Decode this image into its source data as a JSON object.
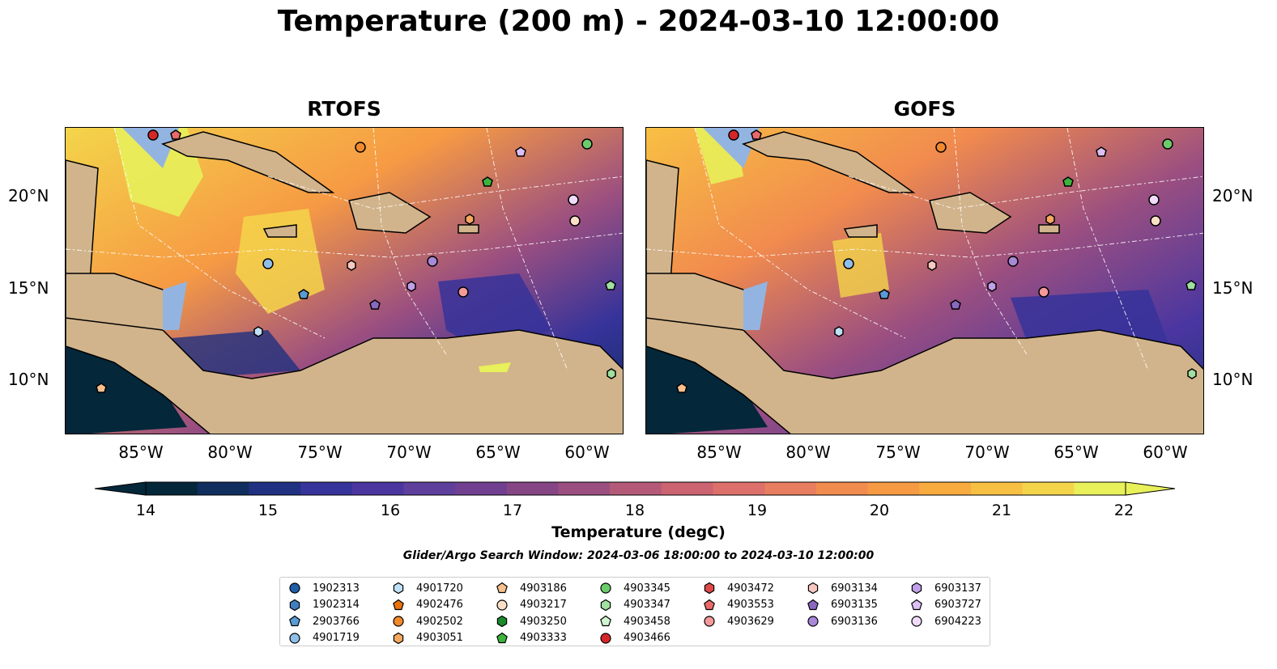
{
  "title": "Temperature (200 m) - 2024-03-10 12:00:00",
  "panels": [
    {
      "title": "RTOFS"
    },
    {
      "title": "GOFS"
    }
  ],
  "x_ticks": [
    "85°W",
    "80°W",
    "75°W",
    "70°W",
    "65°W",
    "60°W"
  ],
  "y_ticks": [
    "20°N",
    "15°N",
    "10°N"
  ],
  "colorbar": {
    "label": "Temperature (degC)",
    "ticks": [
      "14",
      "15",
      "16",
      "17",
      "18",
      "19",
      "20",
      "21",
      "22"
    ],
    "range": [
      14,
      22
    ],
    "colors": [
      "#04273a",
      "#0f2e5e",
      "#1f3180",
      "#36339a",
      "#4b36a0",
      "#5e3f9c",
      "#713f90",
      "#864585",
      "#9b4f80",
      "#b45a78",
      "#cb6370",
      "#dd706a",
      "#e97d5f",
      "#f18b4e",
      "#f69a44",
      "#f8ab3f",
      "#f8c043",
      "#f4d54a",
      "#e8f05a"
    ]
  },
  "search_window": "Glider/Argo Search Window: 2024-03-06 18:00:00 to 2024-03-10 12:00:00",
  "legend": [
    {
      "id": "1902313",
      "marker": "circle",
      "color": "#1f5fa8"
    },
    {
      "id": "1902314",
      "marker": "hexagon",
      "color": "#3f7fc0"
    },
    {
      "id": "2903766",
      "marker": "pentagon",
      "color": "#5a9bd5"
    },
    {
      "id": "4901719",
      "marker": "circle",
      "color": "#8fbfe8"
    },
    {
      "id": "4901720",
      "marker": "hexagon",
      "color": "#bfe0f5"
    },
    {
      "id": "4902476",
      "marker": "pentagon",
      "color": "#e8720c"
    },
    {
      "id": "4902502",
      "marker": "circle",
      "color": "#f08a2c"
    },
    {
      "id": "4903051",
      "marker": "hexagon",
      "color": "#f5a860"
    },
    {
      "id": "4903186",
      "marker": "pentagon",
      "color": "#f8c08c"
    },
    {
      "id": "4903217",
      "marker": "circle",
      "color": "#fbe0c5"
    },
    {
      "id": "4903250",
      "marker": "hexagon",
      "color": "#1a8a2a"
    },
    {
      "id": "4903333",
      "marker": "pentagon",
      "color": "#3cb43c"
    },
    {
      "id": "4903345",
      "marker": "circle",
      "color": "#6ccc6c"
    },
    {
      "id": "4903347",
      "marker": "hexagon",
      "color": "#a0e0a0"
    },
    {
      "id": "4903458",
      "marker": "pentagon",
      "color": "#d0f5d0"
    },
    {
      "id": "4903466",
      "marker": "circle",
      "color": "#d62728"
    },
    {
      "id": "4903472",
      "marker": "hexagon",
      "color": "#e04848"
    },
    {
      "id": "4903553",
      "marker": "pentagon",
      "color": "#ea6a6a"
    },
    {
      "id": "4903629",
      "marker": "circle",
      "color": "#f59a9a"
    },
    {
      "id": "6903134",
      "marker": "hexagon",
      "color": "#f8c8c0"
    },
    {
      "id": "6903135",
      "marker": "pentagon",
      "color": "#8a68c0"
    },
    {
      "id": "6903136",
      "marker": "circle",
      "color": "#a888d8"
    },
    {
      "id": "6903137",
      "marker": "hexagon",
      "color": "#c0a0e8"
    },
    {
      "id": "6903727",
      "marker": "pentagon",
      "color": "#dcc0f5"
    },
    {
      "id": "6904223",
      "marker": "circle",
      "color": "#f0dcfa"
    }
  ],
  "map_colors": {
    "land": "#d2b48c",
    "shelf": "#93b4e0",
    "deep": "#04273a"
  }
}
